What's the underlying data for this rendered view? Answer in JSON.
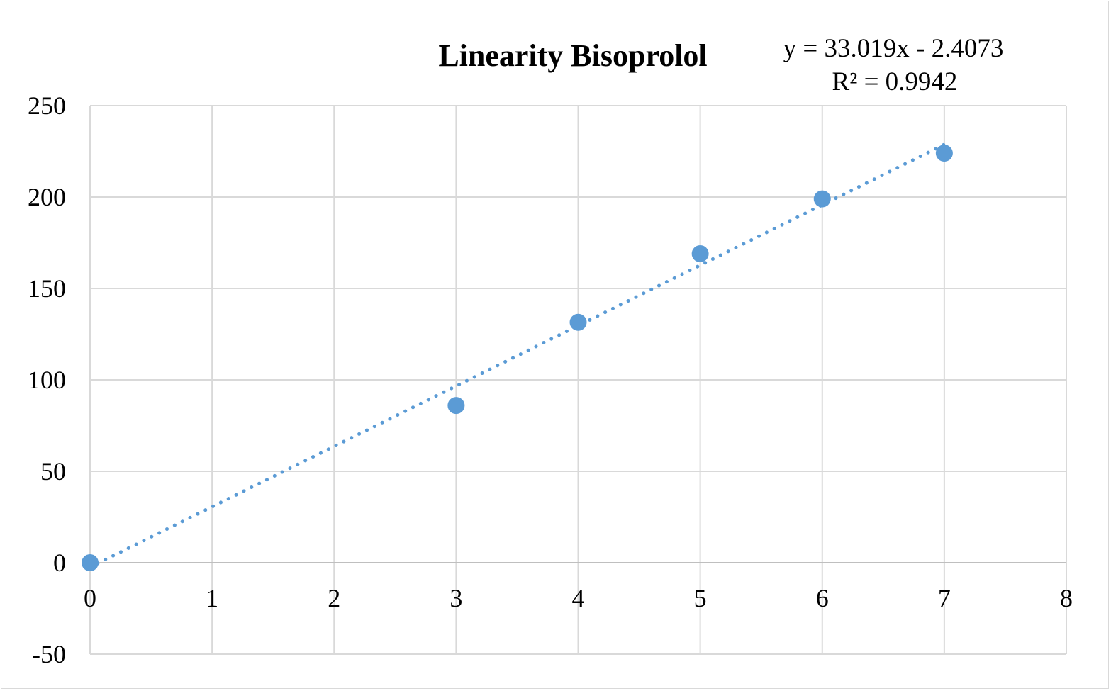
{
  "chart_data": {
    "type": "scatter",
    "title": "Linearity Bisoprolol",
    "xlabel": "",
    "ylabel": "",
    "xlim": [
      0,
      8
    ],
    "ylim": [
      -50,
      250
    ],
    "x_ticks": [
      "0",
      "1",
      "2",
      "3",
      "4",
      "5",
      "6",
      "7",
      "8"
    ],
    "y_ticks": [
      "-50",
      "0",
      "50",
      "100",
      "150",
      "200",
      "250"
    ],
    "grid": true,
    "legend": "none",
    "series": [
      {
        "x": [
          0,
          3,
          4,
          5,
          6,
          7
        ],
        "y": [
          0,
          86,
          131.5,
          169,
          199,
          224
        ],
        "color": "#5b9bd5"
      }
    ],
    "trendline": {
      "type": "linear",
      "style": "dotted",
      "color": "#5b9bd5",
      "slope": 33.019,
      "intercept": -2.4073,
      "x_range": [
        0,
        7
      ],
      "equation_label": "y = 33.019x - 2.4073",
      "r2_label": "R² = 0.9942"
    }
  }
}
